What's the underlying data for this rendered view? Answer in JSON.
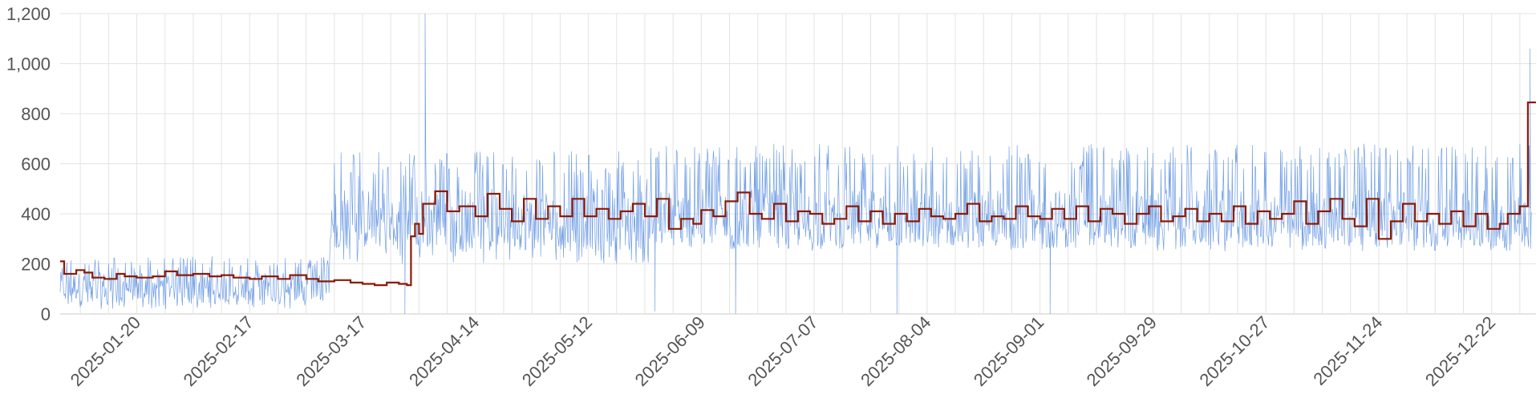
{
  "chart_data": {
    "type": "line",
    "title": "",
    "xlabel": "",
    "ylabel": "",
    "xlim": [
      "2025-01-01",
      "2026-01-02"
    ],
    "ylim": [
      0,
      1200
    ],
    "grid": true,
    "y_ticks": [
      "0",
      "200",
      "400",
      "600",
      "800",
      "1,000",
      "1,200"
    ],
    "y_tick_values": [
      0,
      200,
      400,
      600,
      800,
      1000,
      1200
    ],
    "x_ticks": [
      "2025-01-20",
      "2025-02-17",
      "2025-03-17",
      "2025-04-14",
      "2025-05-12",
      "2025-06-09",
      "2025-07-07",
      "2025-08-04",
      "2025-09-01",
      "2025-09-29",
      "2025-10-27",
      "2025-11-24",
      "2025-12-22"
    ],
    "colors": {
      "detail": "#5b8fe0",
      "average": "#8b1a05",
      "grid": "#e3e3e3",
      "text": "#555555"
    },
    "series": [
      {
        "style": "thin-spiky-line",
        "color": "#5b8fe0",
        "segments": [
          {
            "from": "2025-01-01",
            "to": "2025-03-08",
            "low": 20,
            "high": 230,
            "baseline": 110
          },
          {
            "from": "2025-03-09",
            "to": "2025-05-26",
            "low": 200,
            "high": 650,
            "baseline": 380
          },
          {
            "from": "2025-05-27",
            "to": "2025-12-31",
            "low": 250,
            "high": 680,
            "baseline": 380
          }
        ],
        "notable_points": [
          {
            "x": "2025-04-01",
            "y": 1200
          },
          {
            "x": "2025-03-27",
            "y": 0
          },
          {
            "x": "2025-05-28",
            "y": 10
          },
          {
            "x": "2025-06-17",
            "y": 0
          },
          {
            "x": "2025-07-27",
            "y": 0
          },
          {
            "x": "2025-09-03",
            "y": 0
          },
          {
            "x": "2025-12-31",
            "y": 1060
          }
        ]
      },
      {
        "style": "step",
        "color": "#8b1a05",
        "points": [
          [
            "2025-01-01",
            210
          ],
          [
            "2025-01-02",
            160
          ],
          [
            "2025-01-05",
            175
          ],
          [
            "2025-01-07",
            165
          ],
          [
            "2025-01-09",
            145
          ],
          [
            "2025-01-12",
            140
          ],
          [
            "2025-01-15",
            160
          ],
          [
            "2025-01-17",
            150
          ],
          [
            "2025-01-20",
            145
          ],
          [
            "2025-01-24",
            150
          ],
          [
            "2025-01-27",
            170
          ],
          [
            "2025-01-30",
            155
          ],
          [
            "2025-02-03",
            160
          ],
          [
            "2025-02-07",
            150
          ],
          [
            "2025-02-10",
            155
          ],
          [
            "2025-02-13",
            145
          ],
          [
            "2025-02-17",
            140
          ],
          [
            "2025-02-20",
            150
          ],
          [
            "2025-02-24",
            140
          ],
          [
            "2025-02-27",
            155
          ],
          [
            "2025-03-03",
            140
          ],
          [
            "2025-03-06",
            130
          ],
          [
            "2025-03-10",
            135
          ],
          [
            "2025-03-14",
            125
          ],
          [
            "2025-03-17",
            120
          ],
          [
            "2025-03-20",
            115
          ],
          [
            "2025-03-23",
            125
          ],
          [
            "2025-03-26",
            120
          ],
          [
            "2025-03-28",
            115
          ],
          [
            "2025-03-29",
            310
          ],
          [
            "2025-03-30",
            360
          ],
          [
            "2025-03-31",
            320
          ],
          [
            "2025-04-01",
            440
          ],
          [
            "2025-04-04",
            490
          ],
          [
            "2025-04-07",
            410
          ],
          [
            "2025-04-10",
            430
          ],
          [
            "2025-04-14",
            390
          ],
          [
            "2025-04-17",
            480
          ],
          [
            "2025-04-20",
            420
          ],
          [
            "2025-04-23",
            370
          ],
          [
            "2025-04-26",
            460
          ],
          [
            "2025-04-29",
            380
          ],
          [
            "2025-05-02",
            430
          ],
          [
            "2025-05-05",
            390
          ],
          [
            "2025-05-08",
            460
          ],
          [
            "2025-05-11",
            390
          ],
          [
            "2025-05-14",
            420
          ],
          [
            "2025-05-17",
            380
          ],
          [
            "2025-05-20",
            410
          ],
          [
            "2025-05-23",
            440
          ],
          [
            "2025-05-26",
            390
          ],
          [
            "2025-05-29",
            460
          ],
          [
            "2025-06-01",
            340
          ],
          [
            "2025-06-04",
            380
          ],
          [
            "2025-06-07",
            360
          ],
          [
            "2025-06-09",
            415
          ],
          [
            "2025-06-12",
            390
          ],
          [
            "2025-06-15",
            450
          ],
          [
            "2025-06-18",
            485
          ],
          [
            "2025-06-21",
            400
          ],
          [
            "2025-06-24",
            380
          ],
          [
            "2025-06-27",
            440
          ],
          [
            "2025-06-30",
            370
          ],
          [
            "2025-07-03",
            410
          ],
          [
            "2025-07-06",
            400
          ],
          [
            "2025-07-09",
            360
          ],
          [
            "2025-07-12",
            380
          ],
          [
            "2025-07-15",
            430
          ],
          [
            "2025-07-18",
            370
          ],
          [
            "2025-07-21",
            410
          ],
          [
            "2025-07-24",
            360
          ],
          [
            "2025-07-27",
            400
          ],
          [
            "2025-07-30",
            370
          ],
          [
            "2025-08-02",
            420
          ],
          [
            "2025-08-05",
            390
          ],
          [
            "2025-08-08",
            380
          ],
          [
            "2025-08-11",
            400
          ],
          [
            "2025-08-14",
            440
          ],
          [
            "2025-08-17",
            370
          ],
          [
            "2025-08-20",
            390
          ],
          [
            "2025-08-23",
            380
          ],
          [
            "2025-08-26",
            430
          ],
          [
            "2025-08-29",
            390
          ],
          [
            "2025-09-01",
            380
          ],
          [
            "2025-09-04",
            420
          ],
          [
            "2025-09-07",
            380
          ],
          [
            "2025-09-10",
            430
          ],
          [
            "2025-09-13",
            370
          ],
          [
            "2025-09-16",
            420
          ],
          [
            "2025-09-19",
            400
          ],
          [
            "2025-09-22",
            360
          ],
          [
            "2025-09-25",
            400
          ],
          [
            "2025-09-28",
            430
          ],
          [
            "2025-10-01",
            370
          ],
          [
            "2025-10-04",
            390
          ],
          [
            "2025-10-07",
            420
          ],
          [
            "2025-10-10",
            370
          ],
          [
            "2025-10-13",
            400
          ],
          [
            "2025-10-16",
            370
          ],
          [
            "2025-10-19",
            430
          ],
          [
            "2025-10-22",
            360
          ],
          [
            "2025-10-25",
            410
          ],
          [
            "2025-10-28",
            380
          ],
          [
            "2025-10-31",
            400
          ],
          [
            "2025-11-03",
            450
          ],
          [
            "2025-11-06",
            360
          ],
          [
            "2025-11-09",
            410
          ],
          [
            "2025-11-12",
            460
          ],
          [
            "2025-11-15",
            380
          ],
          [
            "2025-11-18",
            350
          ],
          [
            "2025-11-21",
            460
          ],
          [
            "2025-11-24",
            300
          ],
          [
            "2025-11-27",
            370
          ],
          [
            "2025-11-30",
            440
          ],
          [
            "2025-12-03",
            370
          ],
          [
            "2025-12-06",
            400
          ],
          [
            "2025-12-09",
            360
          ],
          [
            "2025-12-12",
            410
          ],
          [
            "2025-12-15",
            350
          ],
          [
            "2025-12-18",
            400
          ],
          [
            "2025-12-21",
            340
          ],
          [
            "2025-12-24",
            360
          ],
          [
            "2025-12-26",
            400
          ],
          [
            "2025-12-29",
            430
          ],
          [
            "2025-12-31",
            845
          ]
        ]
      }
    ]
  }
}
